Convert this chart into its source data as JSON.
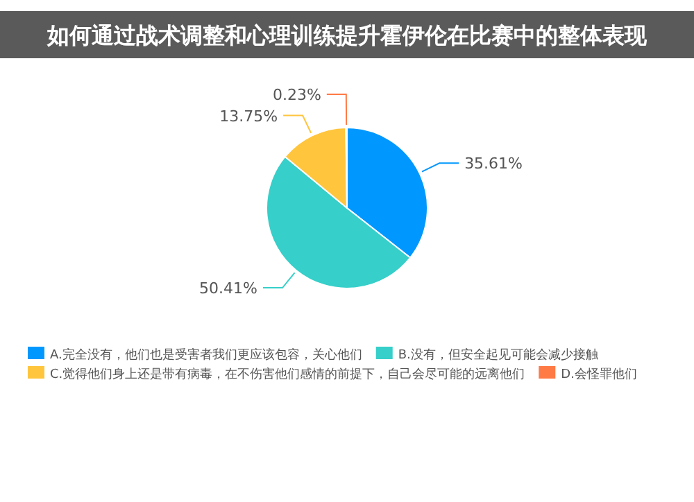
{
  "chart_data": {
    "type": "pie",
    "title": "如何通过战术调整和心理训练提升霍伊伦在比赛中的整体表现",
    "categories": [
      "A.完全没有，他们也是受害者我们更应该包容，关心他们",
      "B.没有，但安全起见可能会减少接触",
      "C.觉得他们身上还是带有病毒，在不伤害他们感情的前提下，自己会尽可能的远离他们",
      "D.会怪罪他们"
    ],
    "values": [
      35.61,
      50.41,
      13.75,
      0.23
    ],
    "colors": [
      "#0098fe",
      "#36cfc9",
      "#ffc53d",
      "#ff7a45"
    ],
    "value_labels": [
      "35.61%",
      "50.41%",
      "13.75%",
      "0.23%"
    ],
    "legend": "bottom"
  }
}
